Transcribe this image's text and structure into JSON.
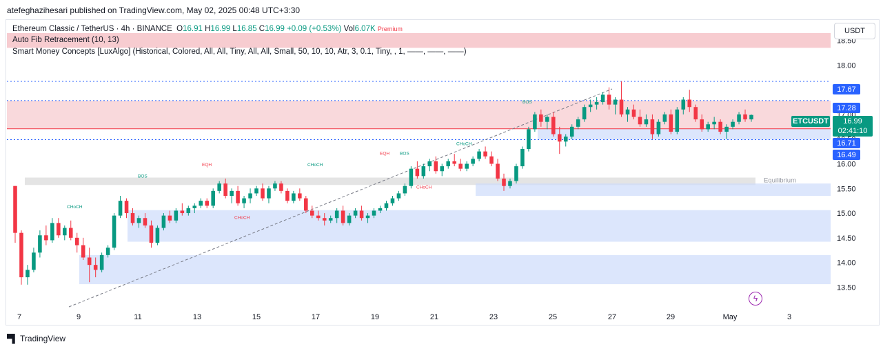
{
  "header": {
    "published": "atefeghazihesari published on TradingView.com, May 02, 2025 00:48 UTC+3:30"
  },
  "legend": {
    "symbol": "Ethereum Classic / TetherUS · 4h · BINANCE",
    "o_label": "O",
    "o": "16.91",
    "h_label": "H",
    "h": "16.99",
    "l_label": "L",
    "l": "16.85",
    "c_label": "C",
    "c": "16.99",
    "change": "+0.09 (+0.53%)",
    "vol_label": "Vol",
    "vol": "6.07K",
    "premium_label": "Premium",
    "indicator1": "Auto Fib Retracement (10, 13)",
    "indicator2": "Smart Money Concepts [LuxAlgo] (Historical, Colored, All, All, Tiny, All, All, Small, 50, 10, 10, Atr, 3, 0.1, Tiny, , 1, ——, ——, ——)"
  },
  "price_axis": {
    "unit": "USDT",
    "tags": [
      "17.67",
      "17.28",
      "16.71",
      "16.49"
    ],
    "symbol_tag": "ETCUSDT",
    "last_price": "16.99",
    "countdown": "02:41:10"
  },
  "annotations": {
    "equilibrium": "Equilibrium",
    "bos": "BOS",
    "choch": "CHoCH",
    "eqh": "EQH"
  },
  "brand": {
    "name": "TradingView"
  },
  "colors": {
    "up": "#089981",
    "down": "#f23645",
    "accent": "#2962ff",
    "premium_zone": "#f7c9cd",
    "demand_zone": "#cddcfb",
    "equilibrium_zone": "#d9d9d9"
  },
  "chart_data": {
    "type": "candlestick",
    "symbol": "ETCUSDT",
    "timeframe": "4h",
    "x_tick_labels": [
      "7",
      "9",
      "11",
      "13",
      "15",
      "17",
      "19",
      "21",
      "23",
      "25",
      "27",
      "29",
      "May",
      "3"
    ],
    "y_tick_labels": [
      "13.50",
      "14.00",
      "14.50",
      "15.00",
      "15.50",
      "16.00",
      "16.50",
      "17.00",
      "17.50",
      "18.00",
      "18.50"
    ],
    "ylim": [
      13.1,
      18.9
    ],
    "grid": false,
    "zones": [
      {
        "kind": "premium",
        "y0": 18.35,
        "y1": 18.65
      },
      {
        "kind": "supply",
        "y0": 16.71,
        "y1": 17.28
      },
      {
        "kind": "demand",
        "y0": 16.49,
        "y1": 16.71
      },
      {
        "kind": "equilibrium",
        "y0": 15.57,
        "y1": 15.72
      },
      {
        "kind": "demand",
        "y0": 15.35,
        "y1": 15.6
      },
      {
        "kind": "demand",
        "y0": 14.42,
        "y1": 15.06
      },
      {
        "kind": "demand",
        "y0": 13.56,
        "y1": 14.15
      }
    ],
    "levels": [
      17.67,
      17.28,
      16.71,
      16.49
    ],
    "ohlc": [
      [
        15.55,
        15.55,
        14.4,
        14.6
      ],
      [
        14.6,
        14.65,
        13.55,
        13.7
      ],
      [
        13.7,
        13.95,
        13.55,
        13.85
      ],
      [
        13.85,
        14.3,
        13.8,
        14.2
      ],
      [
        14.2,
        14.65,
        14.1,
        14.55
      ],
      [
        14.55,
        14.75,
        14.35,
        14.45
      ],
      [
        14.45,
        14.9,
        14.4,
        14.8
      ],
      [
        14.8,
        14.9,
        14.5,
        14.55
      ],
      [
        14.55,
        14.75,
        14.45,
        14.7
      ],
      [
        14.7,
        14.85,
        14.45,
        14.5
      ],
      [
        14.5,
        14.6,
        14.2,
        14.35
      ],
      [
        14.35,
        14.5,
        14.05,
        14.1
      ],
      [
        14.1,
        14.3,
        13.6,
        13.95
      ],
      [
        13.95,
        14.1,
        13.7,
        13.85
      ],
      [
        13.85,
        14.2,
        13.8,
        14.15
      ],
      [
        14.15,
        14.35,
        14.1,
        14.3
      ],
      [
        14.3,
        15.0,
        14.25,
        14.95
      ],
      [
        14.95,
        15.35,
        14.9,
        15.25
      ],
      [
        15.25,
        15.3,
        14.9,
        15.0
      ],
      [
        15.0,
        15.1,
        14.75,
        14.8
      ],
      [
        14.8,
        14.95,
        14.7,
        14.9
      ],
      [
        14.9,
        15.0,
        14.7,
        14.75
      ],
      [
        14.75,
        14.85,
        14.3,
        14.4
      ],
      [
        14.4,
        14.75,
        14.35,
        14.7
      ],
      [
        14.7,
        15.0,
        14.65,
        14.95
      ],
      [
        14.95,
        15.05,
        14.8,
        14.85
      ],
      [
        14.85,
        15.1,
        14.8,
        15.05
      ],
      [
        15.05,
        15.2,
        14.95,
        15.0
      ],
      [
        15.0,
        15.15,
        14.95,
        15.1
      ],
      [
        15.1,
        15.2,
        15.0,
        15.15
      ],
      [
        15.15,
        15.3,
        15.1,
        15.25
      ],
      [
        15.25,
        15.3,
        15.1,
        15.15
      ],
      [
        15.15,
        15.5,
        15.1,
        15.45
      ],
      [
        15.45,
        15.65,
        15.4,
        15.6
      ],
      [
        15.6,
        15.7,
        15.3,
        15.35
      ],
      [
        15.35,
        15.5,
        15.2,
        15.45
      ],
      [
        15.45,
        15.55,
        15.15,
        15.2
      ],
      [
        15.2,
        15.35,
        15.1,
        15.3
      ],
      [
        15.3,
        15.5,
        15.2,
        15.4
      ],
      [
        15.4,
        15.55,
        15.35,
        15.5
      ],
      [
        15.5,
        15.6,
        15.25,
        15.3
      ],
      [
        15.3,
        15.55,
        15.2,
        15.5
      ],
      [
        15.5,
        15.65,
        15.45,
        15.6
      ],
      [
        15.6,
        15.65,
        15.4,
        15.45
      ],
      [
        15.45,
        15.5,
        15.2,
        15.25
      ],
      [
        15.25,
        15.45,
        15.2,
        15.4
      ],
      [
        15.4,
        15.5,
        15.25,
        15.3
      ],
      [
        15.3,
        15.35,
        15.0,
        15.05
      ],
      [
        15.05,
        15.15,
        14.9,
        14.95
      ],
      [
        14.95,
        15.05,
        14.85,
        14.9
      ],
      [
        14.9,
        15.0,
        14.75,
        14.85
      ],
      [
        14.85,
        14.95,
        14.8,
        14.9
      ],
      [
        14.9,
        15.1,
        14.8,
        15.05
      ],
      [
        15.05,
        15.15,
        14.75,
        14.8
      ],
      [
        14.8,
        15.0,
        14.75,
        14.95
      ],
      [
        14.95,
        15.1,
        14.9,
        15.05
      ],
      [
        15.05,
        15.15,
        14.85,
        14.9
      ],
      [
        14.9,
        15.0,
        14.8,
        14.95
      ],
      [
        14.95,
        15.1,
        14.9,
        15.05
      ],
      [
        15.05,
        15.15,
        15.0,
        15.1
      ],
      [
        15.1,
        15.25,
        15.05,
        15.2
      ],
      [
        15.2,
        15.35,
        15.15,
        15.3
      ],
      [
        15.3,
        15.45,
        15.25,
        15.4
      ],
      [
        15.4,
        15.6,
        15.35,
        15.55
      ],
      [
        15.55,
        15.95,
        15.5,
        15.9
      ],
      [
        15.9,
        16.05,
        15.7,
        15.75
      ],
      [
        15.75,
        16.0,
        15.7,
        15.95
      ],
      [
        15.95,
        16.1,
        15.85,
        16.05
      ],
      [
        16.05,
        16.15,
        15.8,
        15.85
      ],
      [
        15.85,
        16.0,
        15.75,
        15.95
      ],
      [
        15.95,
        16.1,
        15.9,
        16.05
      ],
      [
        16.05,
        16.2,
        15.95,
        16.0
      ],
      [
        16.0,
        16.1,
        15.85,
        15.9
      ],
      [
        15.9,
        16.05,
        15.85,
        16.0
      ],
      [
        16.0,
        16.15,
        15.95,
        16.1
      ],
      [
        16.1,
        16.3,
        16.05,
        16.25
      ],
      [
        16.25,
        16.35,
        16.1,
        16.15
      ],
      [
        16.15,
        16.25,
        15.95,
        16.0
      ],
      [
        16.0,
        16.1,
        15.65,
        15.7
      ],
      [
        15.7,
        15.8,
        15.45,
        15.55
      ],
      [
        15.55,
        15.7,
        15.5,
        15.65
      ],
      [
        15.65,
        16.0,
        15.6,
        15.95
      ],
      [
        15.95,
        16.35,
        15.9,
        16.3
      ],
      [
        16.3,
        16.75,
        16.25,
        16.7
      ],
      [
        16.7,
        17.05,
        16.65,
        17.0
      ],
      [
        17.0,
        17.1,
        16.75,
        16.85
      ],
      [
        16.85,
        17.0,
        16.7,
        16.95
      ],
      [
        16.95,
        17.05,
        16.55,
        16.6
      ],
      [
        16.6,
        16.75,
        16.2,
        16.45
      ],
      [
        16.45,
        16.6,
        16.35,
        16.55
      ],
      [
        16.55,
        16.8,
        16.5,
        16.75
      ],
      [
        16.75,
        16.95,
        16.7,
        16.9
      ],
      [
        16.9,
        17.2,
        16.85,
        17.15
      ],
      [
        17.15,
        17.3,
        17.05,
        17.2
      ],
      [
        17.2,
        17.35,
        17.1,
        17.25
      ],
      [
        17.25,
        17.45,
        17.2,
        17.4
      ],
      [
        17.4,
        17.55,
        17.1,
        17.2
      ],
      [
        17.2,
        17.35,
        17.0,
        17.3
      ],
      [
        17.3,
        17.67,
        16.95,
        17.0
      ],
      [
        17.0,
        17.15,
        16.85,
        17.1
      ],
      [
        17.1,
        17.2,
        16.9,
        16.95
      ],
      [
        16.95,
        17.1,
        16.75,
        16.8
      ],
      [
        16.8,
        17.0,
        16.75,
        16.9
      ],
      [
        16.9,
        17.0,
        16.5,
        16.6
      ],
      [
        16.6,
        16.9,
        16.55,
        16.85
      ],
      [
        16.85,
        17.05,
        16.8,
        17.0
      ],
      [
        17.0,
        17.1,
        16.6,
        16.65
      ],
      [
        16.65,
        17.15,
        16.6,
        17.1
      ],
      [
        17.1,
        17.35,
        17.0,
        17.3
      ],
      [
        17.3,
        17.5,
        17.05,
        17.15
      ],
      [
        17.15,
        17.2,
        16.85,
        16.9
      ],
      [
        16.9,
        17.0,
        16.65,
        16.7
      ],
      [
        16.7,
        16.85,
        16.65,
        16.8
      ],
      [
        16.8,
        16.95,
        16.7,
        16.85
      ],
      [
        16.85,
        16.9,
        16.6,
        16.65
      ],
      [
        16.65,
        16.8,
        16.5,
        16.75
      ],
      [
        16.75,
        16.9,
        16.7,
        16.85
      ],
      [
        16.85,
        17.05,
        16.8,
        17.0
      ],
      [
        17.0,
        17.1,
        16.85,
        16.9
      ],
      [
        16.9,
        17.0,
        16.85,
        16.99
      ]
    ]
  }
}
